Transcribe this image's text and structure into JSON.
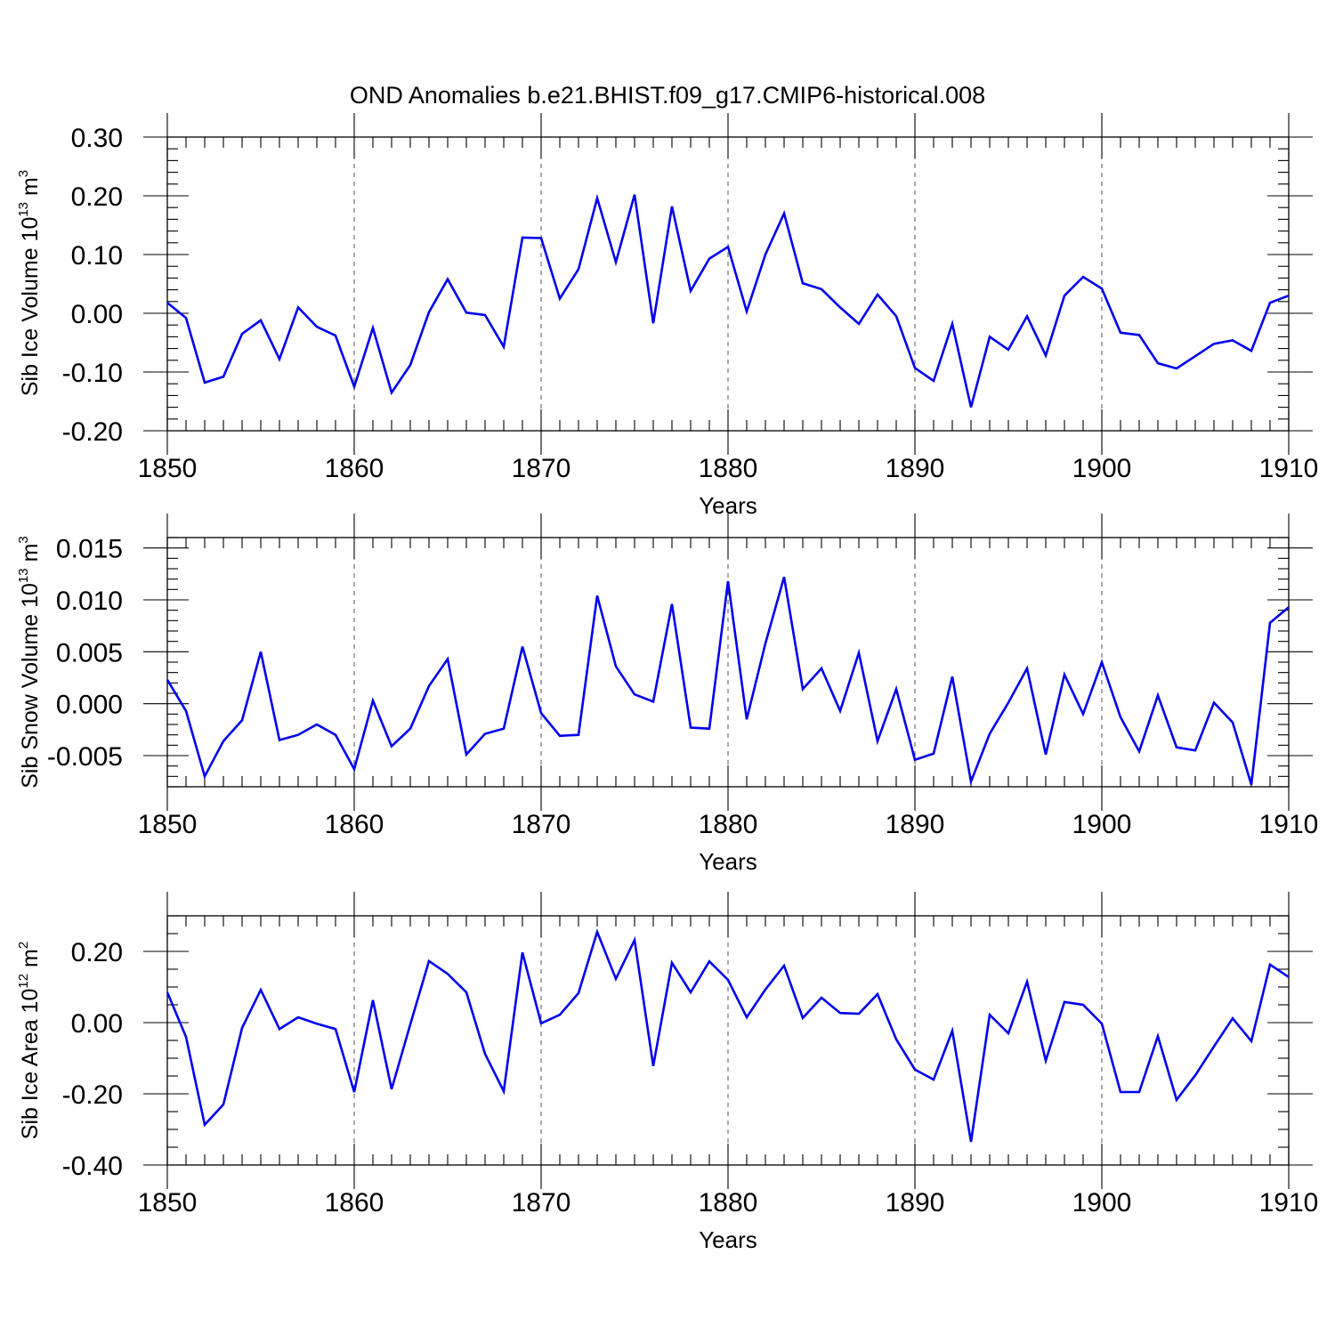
{
  "chart_data": [
    {
      "type": "line",
      "title": "OND Anomalies b.e21.BHIST.f09_g17.CMIP6-historical.008",
      "xlabel": "Years",
      "ylabel_base": "Sib Ice Volume 10",
      "ylabel_exp": "13",
      "ylabel_unit": " m",
      "ylabel_unit_exp": "3",
      "xlim": [
        1850,
        1910
      ],
      "ylim": [
        -0.2,
        0.3
      ],
      "yticks": [
        -0.2,
        -0.1,
        0.0,
        0.1,
        0.2,
        0.3
      ],
      "ytick_labels": [
        "-0.20",
        "-0.10",
        "0.00",
        "0.10",
        "0.20",
        "0.30"
      ],
      "yminor_step": 0.02,
      "xticks": [
        1850,
        1860,
        1870,
        1880,
        1890,
        1900,
        1910
      ],
      "xtick_labels": [
        "1850",
        "1860",
        "1870",
        "1880",
        "1890",
        "1900",
        "1910"
      ],
      "grid": "vertical dashed",
      "line_color": "#0000ee",
      "x_start": 1850,
      "values": [
        0.018,
        -0.008,
        -0.118,
        -0.108,
        -0.035,
        -0.012,
        -0.078,
        0.01,
        -0.023,
        -0.038,
        -0.125,
        -0.025,
        -0.135,
        -0.088,
        0.002,
        0.058,
        0.001,
        -0.003,
        -0.057,
        0.129,
        0.128,
        0.025,
        0.075,
        0.196,
        0.087,
        0.202,
        -0.017,
        0.182,
        0.038,
        0.093,
        0.113,
        0.003,
        0.1,
        0.17,
        0.051,
        0.041,
        0.01,
        -0.018,
        0.032,
        -0.005,
        -0.093,
        -0.115,
        -0.018,
        -0.16,
        -0.04,
        -0.062,
        -0.005,
        -0.072,
        0.03,
        0.062,
        0.042,
        -0.033,
        -0.037,
        -0.085,
        -0.094,
        -0.073,
        -0.052,
        -0.046,
        -0.064,
        0.018,
        0.03
      ]
    },
    {
      "type": "line",
      "xlabel": "Years",
      "ylabel_base": "Sib Snow Volume 10",
      "ylabel_exp": "13",
      "ylabel_unit": " m",
      "ylabel_unit_exp": "3",
      "xlim": [
        1850,
        1910
      ],
      "ylim": [
        -0.008,
        0.016
      ],
      "yticks": [
        -0.005,
        0.0,
        0.005,
        0.01,
        0.015
      ],
      "ytick_labels": [
        "-0.005",
        "0.000",
        "0.005",
        "0.010",
        "0.015"
      ],
      "yminor_step": 0.001,
      "xticks": [
        1850,
        1860,
        1870,
        1880,
        1890,
        1900,
        1910
      ],
      "xtick_labels": [
        "1850",
        "1860",
        "1870",
        "1880",
        "1890",
        "1900",
        "1910"
      ],
      "grid": "vertical dashed",
      "line_color": "#0000ee",
      "x_start": 1850,
      "values": [
        0.0023,
        -0.0007,
        -0.007,
        -0.0036,
        -0.0016,
        0.005,
        -0.0035,
        -0.003,
        -0.002,
        -0.003,
        -0.0063,
        0.0003,
        -0.0041,
        -0.0024,
        0.0017,
        0.0043,
        -0.0049,
        -0.0029,
        -0.0024,
        0.0055,
        -0.0009,
        -0.0031,
        -0.003,
        0.0104,
        0.0036,
        0.0009,
        0.0002,
        0.0096,
        -0.0023,
        -0.0024,
        0.0118,
        -0.0015,
        0.0058,
        0.0122,
        0.0014,
        0.0034,
        -0.0007,
        0.0049,
        -0.0036,
        0.0014,
        -0.0054,
        -0.0048,
        0.0026,
        -0.0075,
        -0.0029,
        0.0001,
        0.0034,
        -0.0049,
        0.0028,
        -0.001,
        0.004,
        -0.0013,
        -0.0046,
        0.0008,
        -0.0042,
        -0.0045,
        0.0001,
        -0.0018,
        -0.0078,
        0.0078,
        0.0093
      ]
    },
    {
      "type": "line",
      "xlabel": "Years",
      "ylabel_base": "Sib Ice Area 10",
      "ylabel_exp": "12",
      "ylabel_unit": " m",
      "ylabel_unit_exp": "2",
      "xlim": [
        1850,
        1910
      ],
      "ylim": [
        -0.4,
        0.3
      ],
      "yticks": [
        -0.4,
        -0.2,
        0.0,
        0.2
      ],
      "ytick_labels": [
        "-0.40",
        "-0.20",
        "0.00",
        "0.20"
      ],
      "yminor_step": 0.05,
      "xticks": [
        1850,
        1860,
        1870,
        1880,
        1890,
        1900,
        1910
      ],
      "xtick_labels": [
        "1850",
        "1860",
        "1870",
        "1880",
        "1890",
        "1900",
        "1910"
      ],
      "grid": "vertical dashed",
      "line_color": "#0000ee",
      "x_start": 1850,
      "values": [
        0.085,
        -0.04,
        -0.287,
        -0.23,
        -0.015,
        0.092,
        -0.018,
        0.015,
        -0.003,
        -0.018,
        -0.195,
        0.063,
        -0.187,
        -0.005,
        0.173,
        0.137,
        0.085,
        -0.088,
        -0.193,
        0.197,
        -0.002,
        0.022,
        0.083,
        0.255,
        0.123,
        0.232,
        -0.122,
        0.168,
        0.085,
        0.172,
        0.12,
        0.015,
        0.093,
        0.16,
        0.013,
        0.07,
        0.027,
        0.025,
        0.08,
        -0.047,
        -0.132,
        -0.16,
        -0.023,
        -0.335,
        0.022,
        -0.03,
        0.115,
        -0.107,
        0.058,
        0.05,
        -0.003,
        -0.195,
        -0.195,
        -0.038,
        -0.217,
        -0.148,
        -0.067,
        0.012,
        -0.052,
        0.163,
        0.128
      ]
    }
  ]
}
